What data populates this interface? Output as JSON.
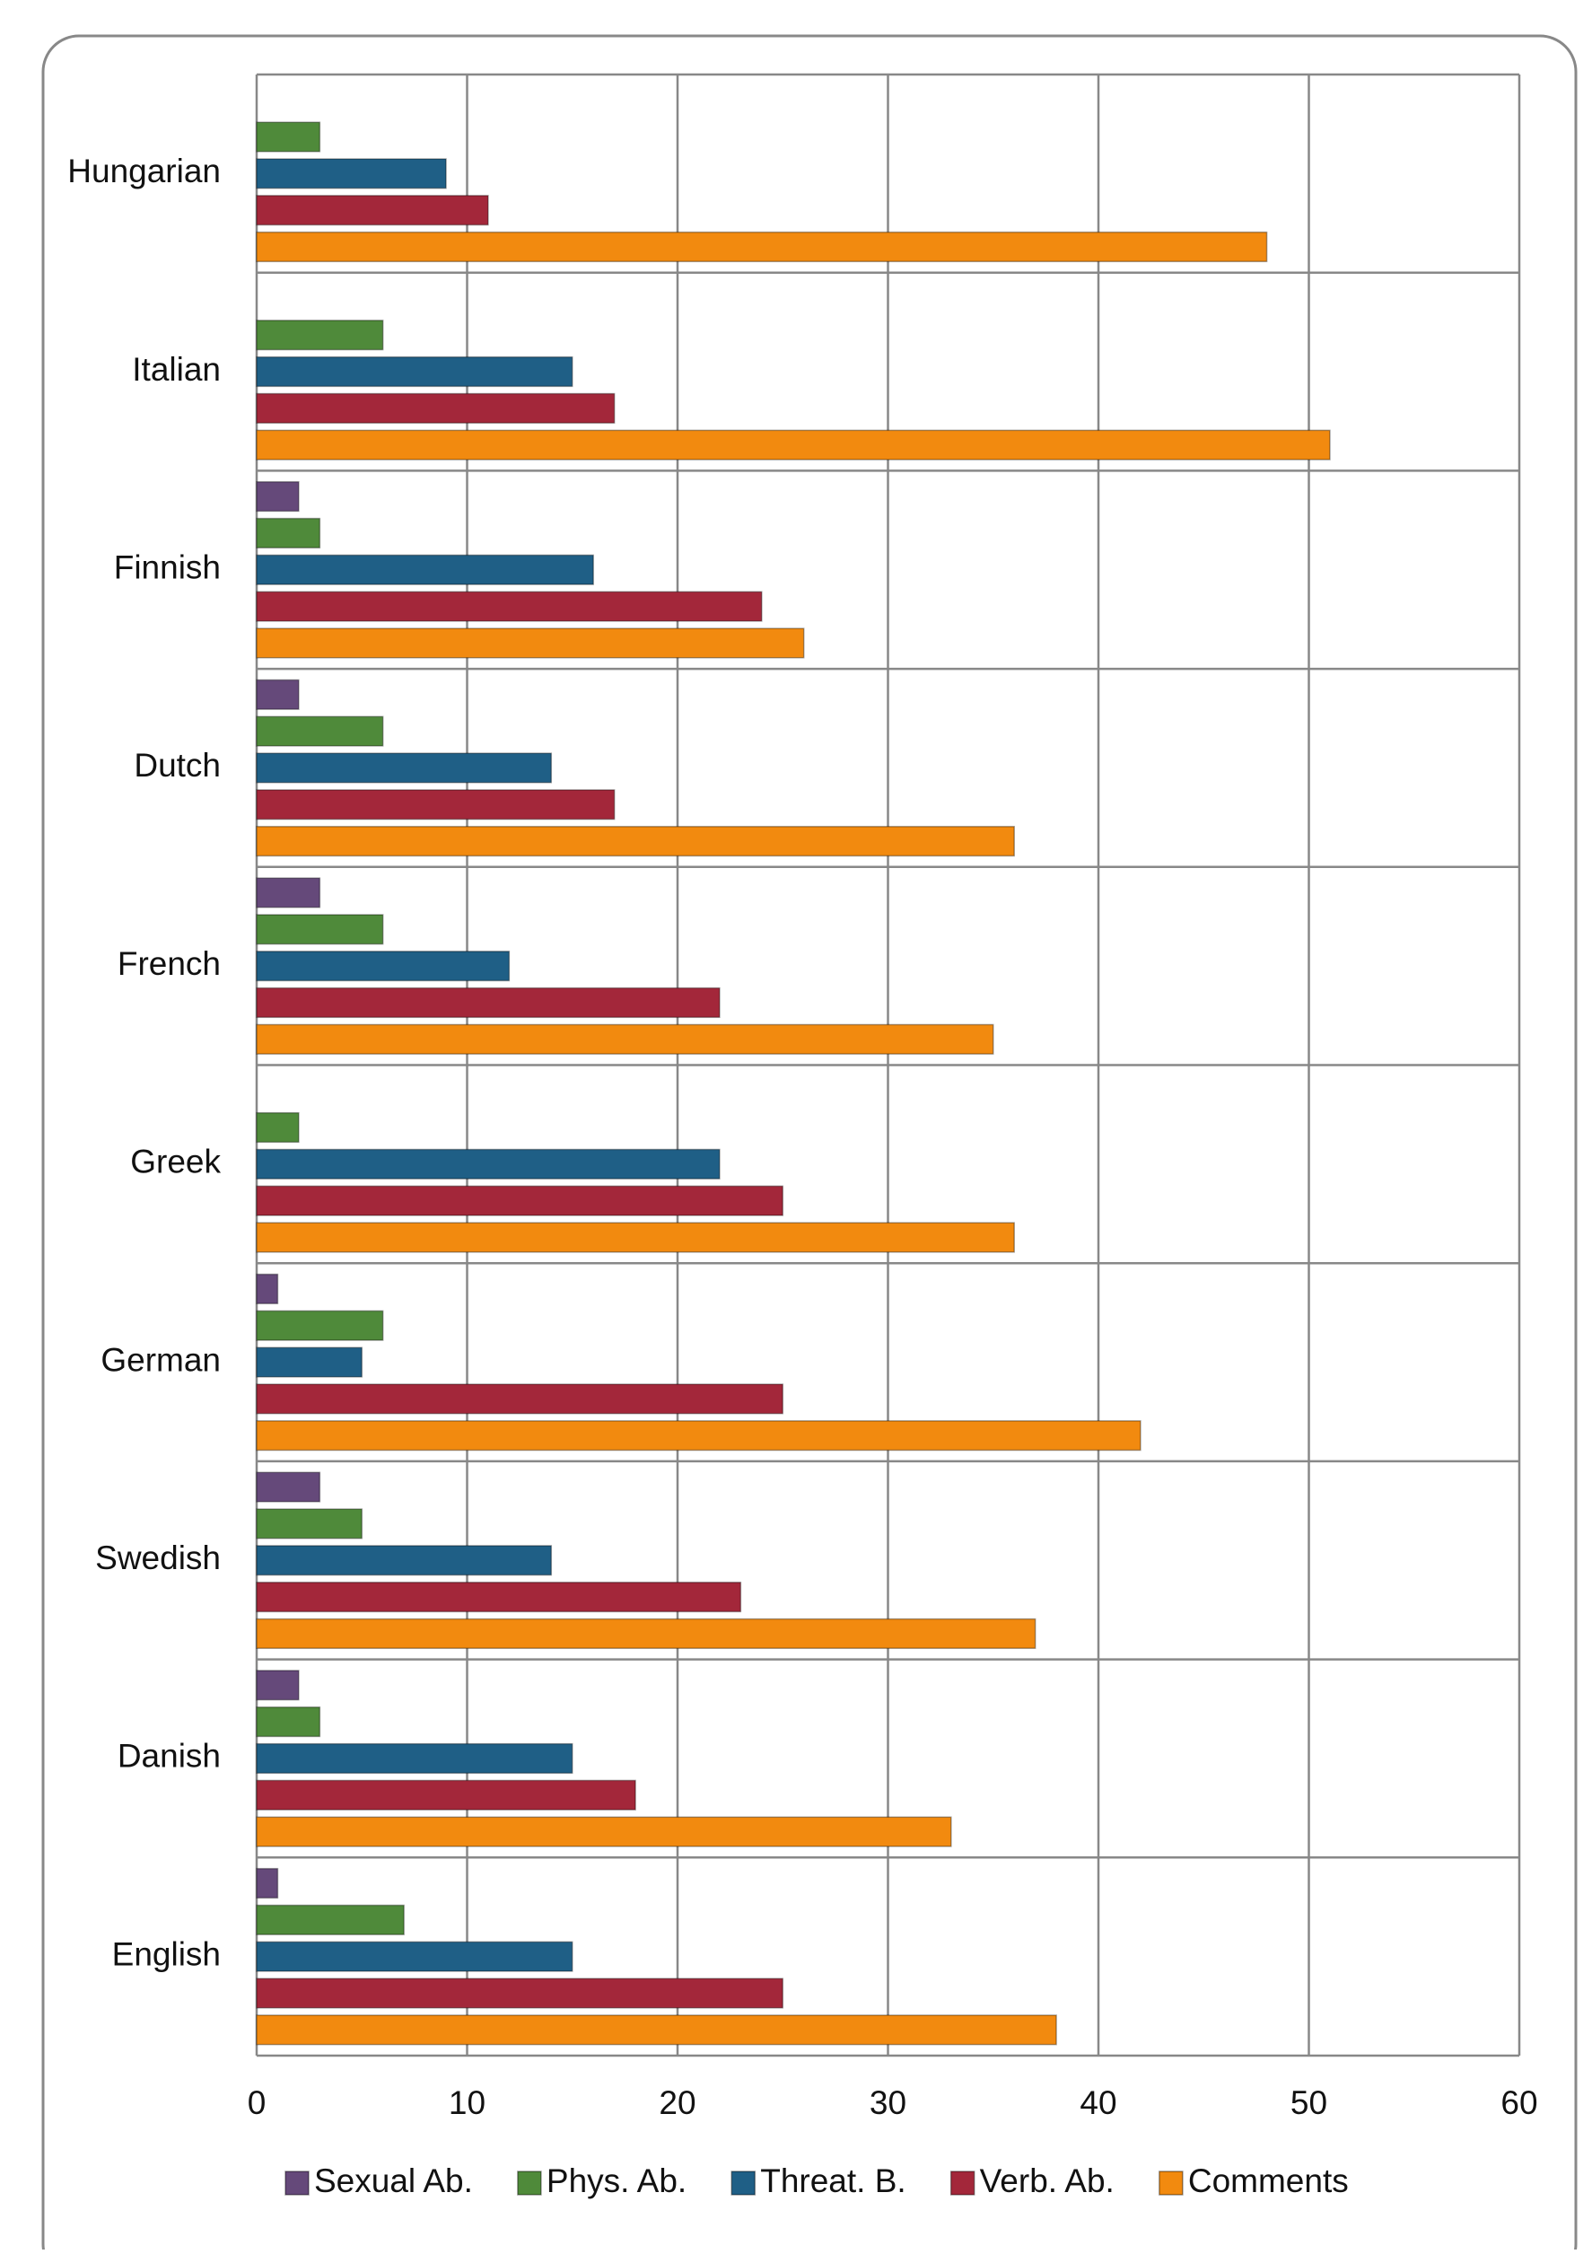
{
  "chart_data": {
    "type": "bar",
    "orientation": "horizontal",
    "categories": [
      "Hungarian",
      "Italian",
      "Finnish",
      "Dutch",
      "French",
      "Greek",
      "German",
      "Swedish",
      "Danish",
      "English"
    ],
    "series": [
      {
        "name": "Sexual Ab.",
        "color": "#65497a",
        "values": [
          0,
          0,
          2,
          2,
          3,
          0,
          1,
          3,
          2,
          1
        ]
      },
      {
        "name": "Phys. Ab.",
        "color": "#4f8a3a",
        "values": [
          3,
          6,
          3,
          6,
          6,
          2,
          6,
          5,
          3,
          7
        ]
      },
      {
        "name": "Threat. B.",
        "color": "#1f5f86",
        "values": [
          9,
          15,
          16,
          14,
          12,
          22,
          5,
          14,
          15,
          15
        ]
      },
      {
        "name": "Verb. Ab.",
        "color": "#a3273a",
        "values": [
          11,
          17,
          24,
          17,
          22,
          25,
          25,
          23,
          18,
          25
        ]
      },
      {
        "name": "Comments",
        "color": "#f28a0f",
        "values": [
          48,
          51,
          26,
          36,
          35,
          36,
          42,
          37,
          33,
          38
        ]
      }
    ],
    "xlim": [
      0,
      60
    ],
    "xticks": [
      0,
      10,
      20,
      30,
      40,
      50,
      60
    ],
    "grid": true,
    "legend": "bottom"
  }
}
